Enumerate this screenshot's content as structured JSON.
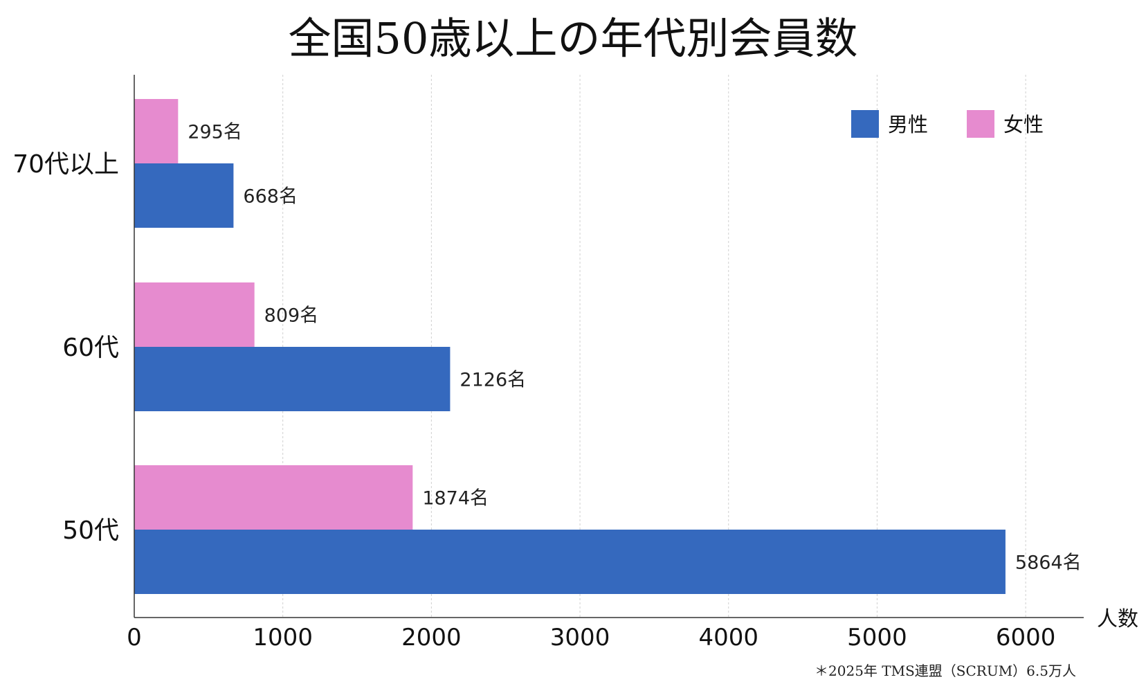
{
  "chart_data": {
    "type": "bar",
    "orientation": "horizontal",
    "title": "全国50歳以上の年代別会員数",
    "categories": [
      "70代以上",
      "60代",
      "50代"
    ],
    "series": [
      {
        "name": "女性",
        "color": "#e68bcf",
        "values": [
          295,
          809,
          1874
        ]
      },
      {
        "name": "男性",
        "color": "#3569be",
        "values": [
          668,
          2126,
          5864
        ]
      }
    ],
    "value_suffix": "名",
    "xlabel": "人数",
    "ylabel": "",
    "xlim": [
      0,
      6400
    ],
    "xticks": [
      0,
      1000,
      2000,
      3000,
      4000,
      5000,
      6000
    ],
    "grid": true,
    "legend_position": "top-right",
    "legend_order": [
      "男性",
      "女性"
    ],
    "footnote": "＊2025年 TMS連盟（SCRUM）6.5万人"
  }
}
